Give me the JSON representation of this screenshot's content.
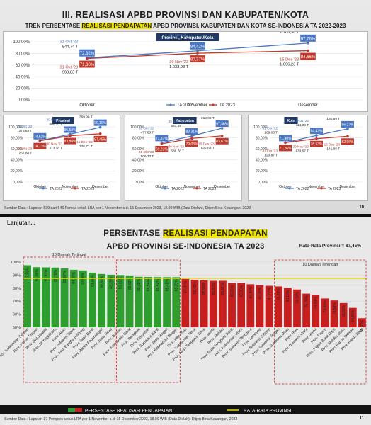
{
  "slide1": {
    "title": "III. REALISASI APBD PROVINSI DAN KABUPATEN/KOTA",
    "subtitle_pre": "TREN PERSENTASE",
    "subtitle_hl": "REALISASI PENDAPATAN",
    "subtitle_post": "APBD PROVINSI, KABUPATEN DAN KOTA SE-INDONESIA TA 2022-2023",
    "source": "Sumber Data : Laporan 539 dari 546 Pemda untuk LRA per 1 November s.d. 15 Desember 2023, 18.00 WIB (Data Diolah), Ditjen Bina Keuangan, 2023",
    "page": "10"
  },
  "slide2": {
    "lanjutan": "Lanjutan...",
    "title_pre": "PERSENTASE",
    "title_hl": "REALISASI PENDAPATAN",
    "title2": "APBD PROVINSI SE-INDONESIA TA 2023",
    "average_label": "Rata-Rata Provinsi = 87,45%",
    "top_label": "10 Daerah Tertinggi",
    "bottom_label": "10 Daerah Terendah",
    "legend_bar": "PERSENTASE REALISASI PENDAPATAN",
    "legend_line": "RATA-RATA PROVINSI",
    "source": "Sumber Data : Laporan 37 Pemprov untuk LRA per 1 November s.d. 15 Desember 2023, 18.00 WIB (Data Diolah), Ditjen Bina Keuangan, 2023",
    "page": "11"
  },
  "colors": {
    "ta2022": "#4a78c4",
    "ta2023": "#c0392b",
    "green": "#2e9e2e",
    "red": "#c81e1e",
    "avg": "#e6d800"
  },
  "chart_data": [
    {
      "type": "line",
      "title": "Provinsi, Kabupaten/Kota",
      "categories": [
        "Oktober",
        "November",
        "Desember"
      ],
      "ylim": [
        0,
        100
      ],
      "yticks": [
        "0,00%",
        "20,00%",
        "40,00%",
        "60,00%",
        "80,00%",
        "100,00%"
      ],
      "series": [
        {
          "name": "TA 2022",
          "values": [
            72.32,
            84.42,
            97.76
          ],
          "labels": [
            "72,32%",
            "84,42%",
            "97,76%"
          ]
        },
        {
          "name": "TA 2023",
          "values": [
            71.3,
            80.37,
            84.66
          ],
          "labels": [
            "71,30%",
            "80,37%",
            "84,66%"
          ]
        }
      ],
      "annotations": {
        "ta2022": [
          [
            "31 Okt '22",
            "844,74 T"
          ],
          [
            "30 Nov '22",
            "1.001,26 T"
          ],
          [
            "31 Des '22",
            "1.168,96 T"
          ]
        ],
        "ta2023": [
          [
            "31 Okt '23",
            "903,83 T"
          ],
          [
            "30 Nov '23",
            "1.033,93 T"
          ],
          [
            "15 Des '23",
            "1.096,23 T"
          ]
        ]
      }
    },
    {
      "type": "line",
      "title": "Provinsi",
      "categories": [
        "Oktober",
        "November",
        "Desember"
      ],
      "ylim": [
        0,
        100
      ],
      "yticks": [
        "0,00%",
        "20,00%",
        "40,00%",
        "60,00%",
        "80,00%",
        "100,00%"
      ],
      "series": [
        {
          "name": "TA 2022",
          "values": [
            74.62,
            86.58,
            99.16
          ],
          "labels": [
            "74,62%",
            "86,58%",
            "99,16%"
          ]
        },
        {
          "name": "TA 2023",
          "values": [
            74.73,
            83.88,
            87.45
          ],
          "labels": [
            "74,73%",
            "83,88%",
            "87,45%"
          ]
        }
      ],
      "annotations": {
        "ta2022": [
          [
            "31 Okt '22",
            "275,63 T"
          ],
          [
            "30 Nov '22",
            "302,15 T"
          ],
          [
            "31 Des '22",
            "369,98 T"
          ]
        ],
        "ta2023": [
          [
            "31 Okt '23",
            "257,88 T"
          ],
          [
            "30 Nov '23",
            "313,18 T"
          ],
          [
            "15 Des '23",
            "326,71 T"
          ]
        ]
      }
    },
    {
      "type": "line",
      "title": "Kabupaten",
      "categories": [
        "Oktober",
        "November",
        "Desember"
      ],
      "ylim": [
        0,
        100
      ],
      "yticks": [
        "0,00%",
        "20,00%",
        "40,00%",
        "60,00%",
        "80,00%",
        "100,00%"
      ],
      "series": [
        {
          "name": "TA 2022",
          "values": [
            71.37,
            83.31,
            97.38
          ],
          "labels": [
            "71,37%",
            "83,31%",
            "97,38%"
          ]
        },
        {
          "name": "TA 2023",
          "values": [
            69.23,
            79.03,
            83.67
          ],
          "labels": [
            "69,23%",
            "79,03%",
            "83,67%"
          ]
        }
      ],
      "annotations": {
        "ta2022": [
          [
            "31 Okt '22",
            "477,83 T"
          ],
          [
            "30 Nov '22",
            "587,55 T"
          ],
          [
            "31 Des '22",
            "668,09 T"
          ]
        ],
        "ta2023": [
          [
            "31 Okt '23",
            "506,33 T"
          ],
          [
            "30 Nov '23",
            "586,78 T"
          ],
          [
            "15 Des '23",
            "627,63 T"
          ]
        ]
      }
    },
    {
      "type": "line",
      "title": "Kota",
      "categories": [
        "Oktober",
        "November",
        "Desember"
      ],
      "ylim": [
        0,
        100
      ],
      "yticks": [
        "0,00%",
        "20,00%",
        "40,00%",
        "60,00%",
        "80,00%",
        "100,00%"
      ],
      "series": [
        {
          "name": "TA 2022",
          "values": [
            71.3,
            84.42,
            96.27
          ],
          "labels": [
            "71,30%",
            "84,42%",
            "96,27%"
          ]
        },
        {
          "name": "TA 2023",
          "values": [
            71.26,
            78.53,
            82.96
          ],
          "labels": [
            "71,26%",
            "78,53%",
            "82,96%"
          ]
        }
      ],
      "annotations": {
        "ta2022": [
          [
            "31 Okt '22",
            "109,03 T"
          ],
          [
            "30 Nov '22",
            "114,94 T"
          ],
          [
            "31 Des '22",
            "150,89 T"
          ]
        ],
        "ta2023": [
          [
            "31 Okt '23",
            "120,87 T"
          ],
          [
            "30 Nov '23",
            "133,57 T"
          ],
          [
            "15 Des '23",
            "141,88 T"
          ]
        ]
      }
    },
    {
      "type": "bar",
      "title": "PERSENTASE REALISASI PENDAPATAN APBD PROVINSI SE-INDONESIA TA 2023",
      "ylim": [
        0,
        100
      ],
      "yticks": [
        "50%",
        "60%",
        "70%",
        "80%",
        "90%",
        "100%"
      ],
      "average": 87.45,
      "categories": [
        "Prov. Kalimantan Selatan",
        "Prov. Papua Tengah",
        "Prov. DKI Jakarta",
        "Prov. DI Yogyakarta",
        "Prov. Aceh",
        "Prov. Sulawesi Barat",
        "Prov. Kep. Bangka Belitung",
        "Prov. Jawa Barat",
        "Prov. Papua Pegunungan",
        "Prov. Jawa Timur",
        "Prov. Banten",
        "Prov. Kalimantan Barat",
        "Prov. Bengkulu",
        "Prov. Gorontalo",
        "Prov. Sumatera Barat",
        "Prov. Jawa Tengah",
        "Prov. Kalimantan Tengah",
        "Prov. Kep. Riau",
        "Prov. Kalimantan Timur",
        "Prov. Nusa Tenggara Timur",
        "Prov. Jambi",
        "Prov. Maluku",
        "Prov. Nusa Tenggara Barat",
        "Prov. Kalimantan Utara",
        "Prov. Sulawesi Tenggara",
        "Prov. Lampung",
        "Prov. Sulawesi Selatan",
        "Prov. Sulawesi Tengah",
        "Prov. Sumatera Utara",
        "Prov. Riau",
        "Prov. Sulawesi Utara",
        "Prov. Jambi",
        "Prov. Papua",
        "Prov. Papua Barat Daya",
        "Prov. Maluku Utara",
        "Prov. Papua Selatan",
        "Prov. Papua Barat"
      ],
      "values": [
        97.58,
        96.06,
        95.93,
        95.76,
        95.07,
        94.07,
        93.58,
        91.88,
        90.84,
        90.29,
        90.01,
        89.68,
        88.68,
        88.54,
        88.42,
        88.41,
        88.39,
        87.04,
        86.4,
        85.99,
        85.6,
        85.61,
        83.86,
        83.85,
        82.96,
        82.28,
        81.77,
        81.29,
        80.13,
        78.94,
        75.78,
        74.93,
        72.05,
        70.56,
        68.58,
        64.86,
        56.93
      ],
      "labels": [
        "97,58%",
        "96,06%",
        "95,93%",
        "95,76%",
        "95,07%",
        "94,07%",
        "93,58%",
        "91,88%",
        "90,84%",
        "90,29%",
        "90,01%",
        "89,68%",
        "88,68%",
        "88,54%",
        "88,42%",
        "88,41%",
        "88,39%",
        "87,04%",
        "86,40%",
        "85,99%",
        "85,60%",
        "85,61%",
        "83,86%",
        "83,85%",
        "82,96%",
        "82,28%",
        "81,77%",
        "81,29%",
        "80,13%",
        "78,94%",
        "75,78%",
        "74,93%",
        "72,05%",
        "70,56%",
        "68,58%",
        "64,86%",
        "56,93%"
      ]
    }
  ]
}
